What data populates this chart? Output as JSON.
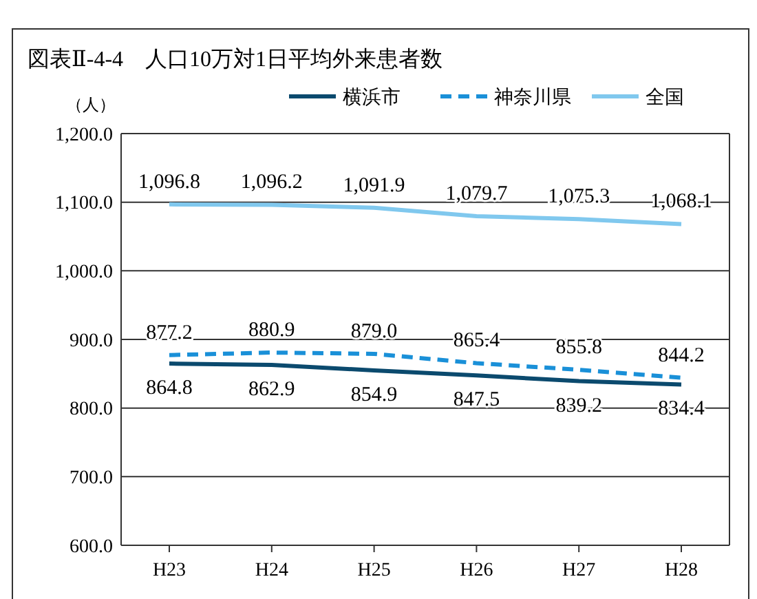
{
  "chart_data": {
    "type": "line",
    "title": "図表Ⅱ-4-4　人口10万対1日平均外来患者数",
    "ylabel": "（人）",
    "categories": [
      "H23",
      "H24",
      "H25",
      "H26",
      "H27",
      "H28"
    ],
    "ylim": [
      600,
      1200
    ],
    "yticks": [
      {
        "value": 600,
        "label": "600.0"
      },
      {
        "value": 700,
        "label": "700.0"
      },
      {
        "value": 800,
        "label": "800.0"
      },
      {
        "value": 900,
        "label": "900.0"
      },
      {
        "value": 1000,
        "label": "1,000.0"
      },
      {
        "value": 1100,
        "label": "1,100.0"
      },
      {
        "value": 1200,
        "label": "1,200.0"
      }
    ],
    "grid": "y",
    "legend": "top right",
    "marker": "none",
    "series": [
      {
        "name": "横浜市",
        "color": "#0b4a6e",
        "line_style": "solid",
        "values": [
          864.8,
          862.9,
          854.9,
          847.5,
          839.2,
          834.4
        ],
        "value_labels": [
          "864.8",
          "862.9",
          "854.9",
          "847.5",
          "839.2",
          "834.4"
        ]
      },
      {
        "name": "神奈川県",
        "color": "#1a90d8",
        "line_style": "dashed",
        "values": [
          877.2,
          880.9,
          879.0,
          865.4,
          855.8,
          844.2
        ],
        "value_labels": [
          "877.2",
          "880.9",
          "879.0",
          "865.4",
          "855.8",
          "844.2"
        ]
      },
      {
        "name": "全国",
        "color": "#80c8ee",
        "line_style": "solid",
        "values": [
          1096.8,
          1096.2,
          1091.9,
          1079.7,
          1075.3,
          1068.1
        ],
        "value_labels": [
          "1,096.8",
          "1,096.2",
          "1,091.9",
          "1,079.7",
          "1,075.3",
          "1,068.1"
        ]
      }
    ]
  }
}
